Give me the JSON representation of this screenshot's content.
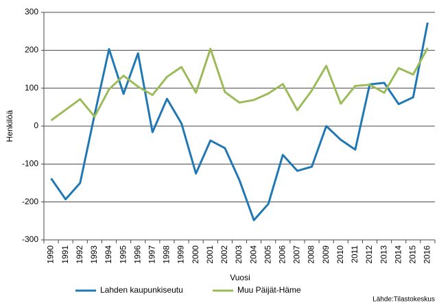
{
  "chart_data": {
    "type": "line",
    "categories": [
      "1990",
      "1991",
      "1992",
      "1993",
      "1994",
      "1995",
      "1996",
      "1997",
      "1998",
      "1999",
      "2000",
      "2001",
      "2002",
      "2003",
      "2004",
      "2005",
      "2006",
      "2007",
      "2008",
      "2009",
      "2010",
      "2011",
      "2012",
      "2013",
      "2014",
      "2015",
      "2016"
    ],
    "series": [
      {
        "name": "Lahden kaupunkiseutu",
        "color": "#1f77b4",
        "values": [
          -138,
          -193,
          -150,
          30,
          203,
          85,
          192,
          -16,
          72,
          7,
          -125,
          -38,
          -58,
          -142,
          -248,
          -205,
          -76,
          -118,
          -107,
          0,
          -36,
          -62,
          110,
          114,
          58,
          76,
          273
        ]
      },
      {
        "name": "Muu Päijät-Häme",
        "color": "#9bbb59",
        "values": [
          15,
          43,
          71,
          25,
          97,
          133,
          104,
          82,
          130,
          156,
          88,
          204,
          90,
          62,
          69,
          86,
          111,
          42,
          94,
          159,
          59,
          106,
          109,
          88,
          153,
          136,
          206
        ]
      }
    ],
    "ylim": [
      -300,
      300
    ],
    "yticks": [
      -300,
      -200,
      -100,
      0,
      100,
      200,
      300
    ],
    "grid": true,
    "y_label": "Henkilöä",
    "x_label": "Vuosi",
    "source": "Lähde:Tilastokeskus"
  }
}
